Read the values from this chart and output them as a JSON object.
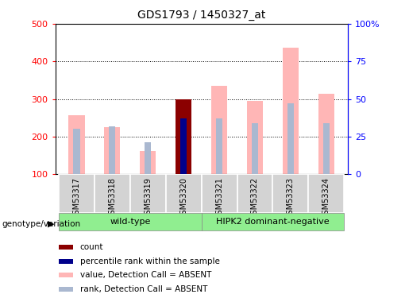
{
  "title": "GDS1793 / 1450327_at",
  "samples": [
    "GSM53317",
    "GSM53318",
    "GSM53319",
    "GSM53320",
    "GSM53321",
    "GSM53322",
    "GSM53323",
    "GSM53324"
  ],
  "value_absent": [
    258,
    225,
    163,
    300,
    336,
    296,
    437,
    315
  ],
  "rank_absent": [
    222,
    228,
    185,
    242,
    248,
    236,
    289,
    237
  ],
  "count_value": [
    0,
    0,
    0,
    300,
    0,
    0,
    0,
    0
  ],
  "count_rank": [
    0,
    0,
    0,
    242,
    0,
    0,
    0,
    0
  ],
  "ylim_left": [
    100,
    500
  ],
  "ylim_right": [
    0,
    100
  ],
  "yticks_left": [
    100,
    200,
    300,
    400,
    500
  ],
  "yticks_right": [
    0,
    25,
    50,
    75,
    100
  ],
  "ytick_labels_right": [
    "0",
    "25",
    "50",
    "75",
    "100%"
  ],
  "value_color": "#ffb6b6",
  "rank_color": "#aab8d0",
  "count_color": "#8b0000",
  "count_rank_color": "#00008b",
  "background_color": "#ffffff",
  "legend_items": [
    "count",
    "percentile rank within the sample",
    "value, Detection Call = ABSENT",
    "rank, Detection Call = ABSENT"
  ],
  "legend_colors": [
    "#8b0000",
    "#00008b",
    "#ffb6b6",
    "#aab8d0"
  ],
  "wild_type_label": "wild-type",
  "hipk2_label": "HIPK2 dominant-negative",
  "genotype_label": "genotype/variation",
  "group_color": "#90EE90"
}
